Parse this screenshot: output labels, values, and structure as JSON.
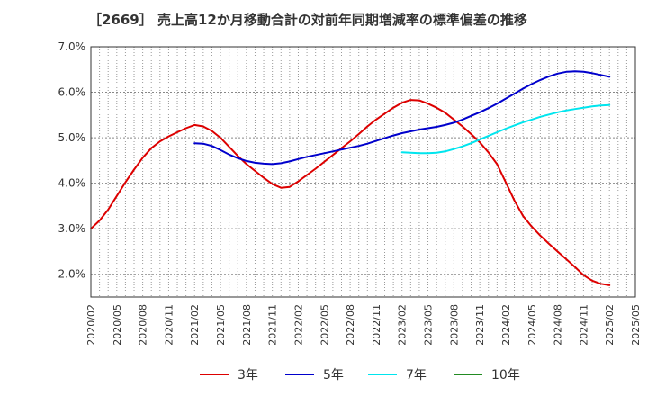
{
  "title": "［2669］ 売上高12か月移動合計の対前年同期増減率の標準偏差の推移",
  "chart_data": {
    "type": "line",
    "title": "［2669］ 売上高12か月移動合計の対前年同期増減率の標準偏差の推移",
    "xlabel": "",
    "ylabel": "",
    "ylim": [
      1.5,
      7.0
    ],
    "y_ticks": [
      "2.0%",
      "3.0%",
      "4.0%",
      "5.0%",
      "6.0%",
      "7.0%"
    ],
    "x_ticks": [
      "2020/02",
      "2020/05",
      "2020/08",
      "2020/11",
      "2021/02",
      "2021/05",
      "2021/08",
      "2021/11",
      "2022/02",
      "2022/05",
      "2022/08",
      "2022/11",
      "2023/02",
      "2023/05",
      "2023/08",
      "2023/11",
      "2024/02",
      "2024/05",
      "2024/08",
      "2024/11",
      "2025/02",
      "2025/05"
    ],
    "grid": true,
    "legend_position": "bottom",
    "series": [
      {
        "name": "3年",
        "color": "#dd0000",
        "x": [
          "2020/02",
          "2020/03",
          "2020/04",
          "2020/05",
          "2020/06",
          "2020/07",
          "2020/08",
          "2020/09",
          "2020/10",
          "2020/11",
          "2020/12",
          "2021/01",
          "2021/02",
          "2021/03",
          "2021/04",
          "2021/05",
          "2021/06",
          "2021/07",
          "2021/08",
          "2021/09",
          "2021/10",
          "2021/11",
          "2021/12",
          "2022/01",
          "2022/02",
          "2022/03",
          "2022/04",
          "2022/05",
          "2022/06",
          "2022/07",
          "2022/08",
          "2022/09",
          "2022/10",
          "2022/11",
          "2022/12",
          "2023/01",
          "2023/02",
          "2023/03",
          "2023/04",
          "2023/05",
          "2023/06",
          "2023/07",
          "2023/08",
          "2023/09",
          "2023/10",
          "2023/11",
          "2023/12",
          "2024/01",
          "2024/02",
          "2024/03",
          "2024/04",
          "2024/05",
          "2024/06",
          "2024/07",
          "2024/08",
          "2024/09",
          "2024/10",
          "2024/11",
          "2024/12",
          "2025/01",
          "2025/02"
        ],
        "values": [
          3.0,
          3.18,
          3.42,
          3.72,
          4.02,
          4.3,
          4.56,
          4.77,
          4.92,
          5.03,
          5.12,
          5.21,
          5.28,
          5.25,
          5.15,
          5.0,
          4.8,
          4.6,
          4.42,
          4.27,
          4.12,
          3.98,
          3.9,
          3.92,
          4.04,
          4.18,
          4.32,
          4.47,
          4.62,
          4.77,
          4.92,
          5.08,
          5.25,
          5.4,
          5.53,
          5.66,
          5.77,
          5.83,
          5.82,
          5.75,
          5.66,
          5.55,
          5.4,
          5.25,
          5.08,
          4.9,
          4.68,
          4.42,
          4.02,
          3.62,
          3.28,
          3.05,
          2.85,
          2.67,
          2.5,
          2.33,
          2.16,
          1.98,
          1.86,
          1.79,
          1.76
        ]
      },
      {
        "name": "5年",
        "color": "#0000cc",
        "x": [
          "2021/02",
          "2021/03",
          "2021/04",
          "2021/05",
          "2021/06",
          "2021/07",
          "2021/08",
          "2021/09",
          "2021/10",
          "2021/11",
          "2021/12",
          "2022/01",
          "2022/02",
          "2022/03",
          "2022/04",
          "2022/05",
          "2022/06",
          "2022/07",
          "2022/08",
          "2022/09",
          "2022/10",
          "2022/11",
          "2022/12",
          "2023/01",
          "2023/02",
          "2023/03",
          "2023/04",
          "2023/05",
          "2023/06",
          "2023/07",
          "2023/08",
          "2023/09",
          "2023/10",
          "2023/11",
          "2023/12",
          "2024/01",
          "2024/02",
          "2024/03",
          "2024/04",
          "2024/05",
          "2024/06",
          "2024/07",
          "2024/08",
          "2024/09",
          "2024/10",
          "2024/11",
          "2024/12",
          "2025/01",
          "2025/02"
        ],
        "values": [
          4.88,
          4.87,
          4.82,
          4.73,
          4.63,
          4.55,
          4.49,
          4.45,
          4.43,
          4.42,
          4.44,
          4.48,
          4.53,
          4.58,
          4.62,
          4.66,
          4.7,
          4.74,
          4.78,
          4.82,
          4.87,
          4.93,
          4.99,
          5.05,
          5.1,
          5.14,
          5.18,
          5.21,
          5.24,
          5.28,
          5.33,
          5.4,
          5.48,
          5.56,
          5.65,
          5.75,
          5.86,
          5.97,
          6.08,
          6.18,
          6.27,
          6.35,
          6.41,
          6.45,
          6.46,
          6.45,
          6.42,
          6.38,
          6.34
        ]
      },
      {
        "name": "7年",
        "color": "#00e5ee",
        "x": [
          "2023/02",
          "2023/03",
          "2023/04",
          "2023/05",
          "2023/06",
          "2023/07",
          "2023/08",
          "2023/09",
          "2023/10",
          "2023/11",
          "2023/12",
          "2024/01",
          "2024/02",
          "2024/03",
          "2024/04",
          "2024/05",
          "2024/06",
          "2024/07",
          "2024/08",
          "2024/09",
          "2024/10",
          "2024/11",
          "2024/12",
          "2025/01",
          "2025/02"
        ],
        "values": [
          4.68,
          4.67,
          4.66,
          4.66,
          4.67,
          4.7,
          4.75,
          4.81,
          4.88,
          4.96,
          5.04,
          5.12,
          5.2,
          5.27,
          5.34,
          5.4,
          5.46,
          5.51,
          5.56,
          5.6,
          5.63,
          5.66,
          5.69,
          5.71,
          5.72
        ]
      },
      {
        "name": "10年",
        "color": "#228b22",
        "x": [],
        "values": []
      }
    ]
  }
}
